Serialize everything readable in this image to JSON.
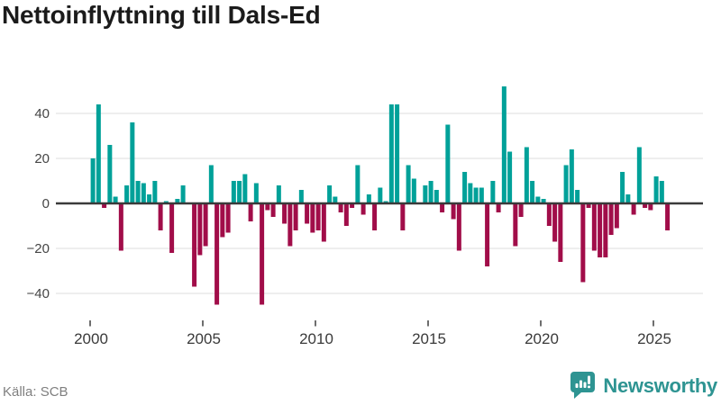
{
  "title": "Nettoinflyttning till Dals-Ed",
  "source": "Källa: SCB",
  "brand": {
    "name": "Newsworthy"
  },
  "colors": {
    "positive": "#00a199",
    "negative": "#a10d49",
    "grid": "#e3e3e3",
    "zero_axis": "#3a3a3a",
    "tick_label": "#454545",
    "x_tick_mark": "#4a4a4a",
    "brand_teal": "#2e9492",
    "background": "#ffffff"
  },
  "chart_data": {
    "type": "bar",
    "title": "Nettoinflyttning till Dals-Ed",
    "frequency": "quarterly",
    "start": "2000-Q1",
    "end": "2025-Q3",
    "values": [
      20,
      44,
      -2,
      26,
      3,
      -21,
      8,
      36,
      10,
      9,
      4,
      10,
      -12,
      1,
      -22,
      2,
      8,
      0,
      -37,
      -23,
      -19,
      17,
      -45,
      -15,
      -13,
      10,
      10,
      13,
      -8,
      9,
      -45,
      -3,
      -6,
      8,
      -9,
      -19,
      -12,
      6,
      -9,
      -13,
      -12,
      -17,
      8,
      3,
      -4,
      -10,
      -2,
      17,
      -5,
      4,
      -12,
      7,
      1,
      44,
      44,
      -12,
      17,
      11,
      0,
      8,
      10,
      6,
      -4,
      35,
      -7,
      -21,
      14,
      9,
      7,
      7,
      -28,
      10,
      -4,
      52,
      23,
      -19,
      -6,
      25,
      10,
      3,
      2,
      -10,
      -17,
      -26,
      17,
      24,
      6,
      -35,
      -2,
      -21,
      -24,
      -24,
      -14,
      -11,
      14,
      4,
      -5,
      25,
      -2,
      -3,
      12,
      10,
      -12
    ],
    "yticks": [
      {
        "label": "40",
        "value": 40
      },
      {
        "label": "20",
        "value": 20
      },
      {
        "label": "0",
        "value": 0
      },
      {
        "label": "−20",
        "value": -20
      },
      {
        "label": "−40",
        "value": -40
      }
    ],
    "xticks": [
      {
        "label": "2000",
        "quarter_index": 0
      },
      {
        "label": "2005",
        "quarter_index": 20
      },
      {
        "label": "2010",
        "quarter_index": 40
      },
      {
        "label": "2015",
        "quarter_index": 60
      },
      {
        "label": "2020",
        "quarter_index": 80
      },
      {
        "label": "2025",
        "quarter_index": 100
      }
    ],
    "ylim": [
      -50,
      55
    ],
    "grid": true,
    "legend": false,
    "positive_color": "#00a199",
    "negative_color": "#a10d49"
  }
}
